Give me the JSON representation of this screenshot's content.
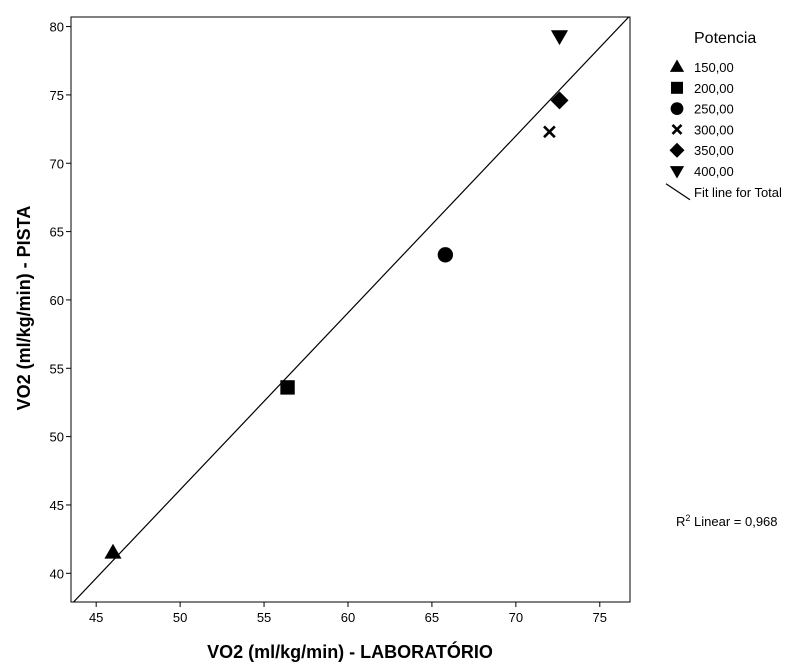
{
  "chart_data": {
    "type": "scatter",
    "xlabel": "VO2 (ml/kg/min) - LABORATÓRIO",
    "ylabel": "VO2 (ml/kg/min) - PISTA",
    "xlim": [
      43.5,
      76.8
    ],
    "ylim": [
      37.9,
      80.7
    ],
    "xticks": [
      45,
      50,
      55,
      60,
      65,
      70,
      75
    ],
    "yticks": [
      40,
      45,
      50,
      55,
      60,
      65,
      70,
      75,
      80
    ],
    "grid": false,
    "legend": {
      "title": "Potencia",
      "placement": "right",
      "entries": [
        {
          "label": "150,00",
          "marker": "triangle-up"
        },
        {
          "label": "200,00",
          "marker": "square"
        },
        {
          "label": "250,00",
          "marker": "circle"
        },
        {
          "label": "300,00",
          "marker": "x"
        },
        {
          "label": "350,00",
          "marker": "diamond"
        },
        {
          "label": "400,00",
          "marker": "triangle-down"
        }
      ],
      "fit_label": "Fit line for Total"
    },
    "series": [
      {
        "name": "150,00",
        "marker": "triangle-up",
        "x": [
          46.0
        ],
        "y": [
          41.5
        ]
      },
      {
        "name": "200,00",
        "marker": "square",
        "x": [
          56.4
        ],
        "y": [
          53.6
        ]
      },
      {
        "name": "250,00",
        "marker": "circle",
        "x": [
          65.8
        ],
        "y": [
          63.3
        ]
      },
      {
        "name": "300,00",
        "marker": "x",
        "x": [
          72.0
        ],
        "y": [
          72.3
        ]
      },
      {
        "name": "350,00",
        "marker": "diamond",
        "x": [
          72.6
        ],
        "y": [
          74.6
        ]
      },
      {
        "name": "400,00",
        "marker": "triangle-down",
        "x": [
          72.6
        ],
        "y": [
          79.3
        ]
      }
    ],
    "fit_line": {
      "label": "Fit line for Total",
      "x": [
        43.5,
        76.8
      ],
      "y": [
        37.7,
        80.8
      ]
    },
    "annotation": {
      "r2_prefix": "R",
      "r2_superscript": "2",
      "r2_text": " Linear = 0,968"
    }
  }
}
